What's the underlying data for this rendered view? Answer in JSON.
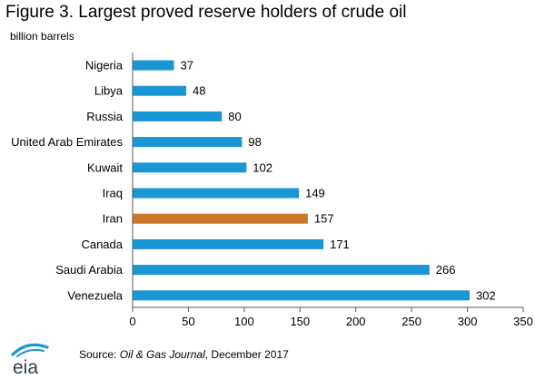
{
  "colors": {
    "bar": "#1a96d4",
    "highlight": "#c8792c",
    "axis": "#595959"
  },
  "chart_data": {
    "type": "bar",
    "orientation": "horizontal",
    "title": "Figure 3. Largest proved reserve holders of crude oil",
    "subtitle": "billion barrels",
    "categories": [
      "Nigeria",
      "Libya",
      "Russia",
      "United Arab Emirates",
      "Kuwait",
      "Iraq",
      "Iran",
      "Canada",
      "Saudi Arabia",
      "Venezuela"
    ],
    "values": [
      37,
      48,
      80,
      98,
      102,
      149,
      157,
      171,
      266,
      302
    ],
    "highlight": "Iran",
    "xlim": [
      0,
      350
    ],
    "xticks": [
      "0",
      "50",
      "100",
      "150",
      "200",
      "250",
      "300",
      "350"
    ],
    "grid": false,
    "legend": "none"
  },
  "footer": {
    "logo_text": "eia",
    "source_prefix": "Source: ",
    "source_publication": "Oil & Gas Journal",
    "source_suffix": ", December 2017"
  }
}
